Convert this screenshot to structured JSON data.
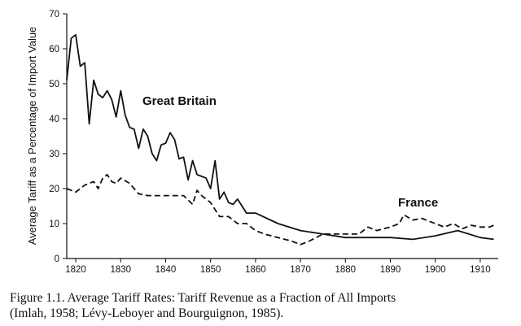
{
  "chart_data": {
    "type": "line",
    "title": "",
    "xlabel": "",
    "ylabel": "Average Tariff as a Percentage of Import Value",
    "xlim": [
      1818,
      1914
    ],
    "ylim": [
      0,
      70
    ],
    "x_ticks": [
      1820,
      1830,
      1840,
      1850,
      1860,
      1870,
      1880,
      1890,
      1900,
      1910
    ],
    "y_ticks": [
      0,
      10,
      20,
      30,
      40,
      50,
      60,
      70
    ],
    "grid": false,
    "series": [
      {
        "name": "Great Britain",
        "style": "solid",
        "color": "#111111",
        "x": [
          1818,
          1819,
          1820,
          1821,
          1822,
          1823,
          1824,
          1825,
          1826,
          1827,
          1828,
          1829,
          1830,
          1831,
          1832,
          1833,
          1834,
          1835,
          1836,
          1837,
          1838,
          1839,
          1840,
          1841,
          1842,
          1843,
          1844,
          1845,
          1846,
          1847,
          1848,
          1849,
          1850,
          1851,
          1852,
          1853,
          1854,
          1855,
          1856,
          1857,
          1858,
          1859,
          1860,
          1865,
          1870,
          1875,
          1880,
          1885,
          1890,
          1895,
          1900,
          1905,
          1910,
          1913
        ],
        "y": [
          51,
          63,
          64,
          55,
          56,
          38.5,
          51,
          47,
          46,
          48,
          45.5,
          40.5,
          48,
          41,
          37.5,
          37,
          31.5,
          37,
          35,
          30,
          28,
          32.5,
          33,
          36,
          34,
          28.5,
          29,
          22.5,
          28,
          24,
          23.5,
          23,
          20,
          28,
          17,
          19,
          16,
          15.5,
          17,
          15,
          13,
          13,
          13,
          10,
          8,
          7,
          6,
          6,
          6,
          5.5,
          6.5,
          8,
          6,
          5.5
        ]
      },
      {
        "name": "France",
        "style": "dashed",
        "color": "#111111",
        "x": [
          1818,
          1820,
          1822,
          1824,
          1825,
          1826,
          1827,
          1828,
          1829,
          1830,
          1832,
          1834,
          1836,
          1840,
          1844,
          1846,
          1847,
          1848,
          1850,
          1852,
          1854,
          1856,
          1858,
          1860,
          1862,
          1865,
          1868,
          1870,
          1872,
          1875,
          1878,
          1880,
          1883,
          1885,
          1887,
          1890,
          1892,
          1893,
          1895,
          1897,
          1900,
          1902,
          1904,
          1906,
          1908,
          1910,
          1912,
          1913
        ],
        "y": [
          20,
          19,
          21,
          22,
          20,
          23,
          24,
          22,
          21.5,
          23,
          21.5,
          18.5,
          18,
          18,
          18,
          15.5,
          19.5,
          18,
          16,
          12,
          12,
          10,
          10,
          8,
          7,
          6,
          5,
          4,
          5,
          7,
          7,
          7,
          7,
          9,
          8,
          9,
          10,
          12.5,
          11,
          11.5,
          10,
          9,
          10,
          8.5,
          9.5,
          9,
          9,
          9.5
        ]
      }
    ],
    "annotations": [
      "Great Britain",
      "France"
    ]
  },
  "caption": {
    "line1": "Figure 1.1. Average Tariff Rates: Tariff Revenue as a Fraction of All Imports",
    "line2": "(Imlah, 1958; Lévy-Leboyer and Bourguignon, 1985)."
  }
}
